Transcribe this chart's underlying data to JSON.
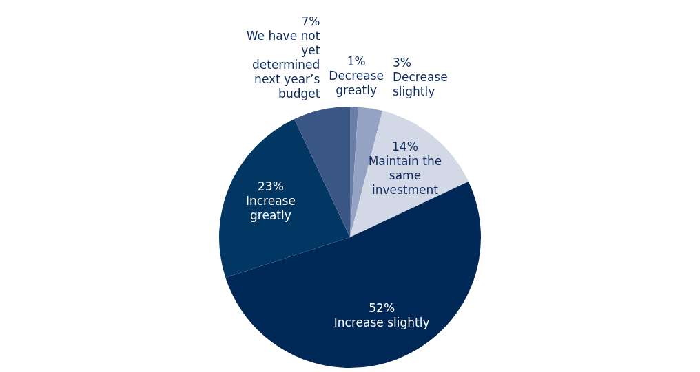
{
  "chart_data": {
    "type": "pie",
    "categories": [
      "Decrease greatly",
      "Decrease slightly",
      "Maintain the same investment",
      "Increase slightly",
      "Increase greatly",
      "We have not yet determined next year’s budget"
    ],
    "values": [
      1,
      3,
      14,
      52,
      23,
      7
    ],
    "value_labels": [
      "1%",
      "3%",
      "14%",
      "52%",
      "23%",
      "7%"
    ],
    "data_labels": true,
    "legend": false,
    "colors": [
      "#6a7ea8",
      "#94a3c4",
      "#d3d8e6",
      "#002856",
      "#023764",
      "#3a5684"
    ]
  }
}
